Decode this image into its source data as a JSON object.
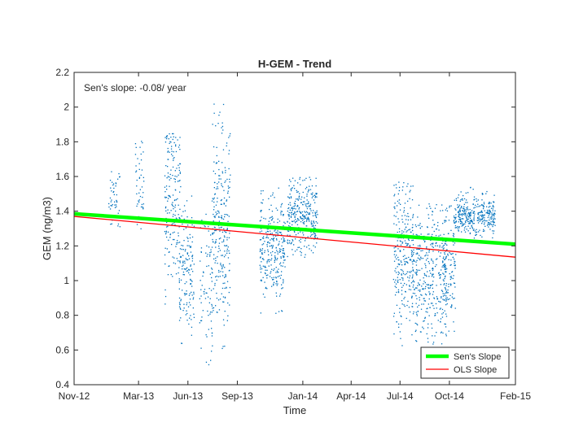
{
  "chart_data": {
    "type": "scatter",
    "title": "H-GEM - Trend",
    "xlabel": "Time",
    "ylabel": "GEM (ng/m3)",
    "ylim": [
      0.4,
      2.2
    ],
    "yticks": [
      0.4,
      0.6,
      0.8,
      1,
      1.2,
      1.4,
      1.6,
      1.8,
      2,
      2.2
    ],
    "yticklabels": [
      "0.4",
      "0.6",
      "0.8",
      "1",
      "1.2",
      "1.4",
      "1.6",
      "1.8",
      "2",
      "2.2"
    ],
    "xlim": [
      "2012-11-01",
      "2015-02-01"
    ],
    "xticks": [
      "2012-11-01",
      "2013-03-01",
      "2013-06-01",
      "2013-09-01",
      "2014-01-01",
      "2014-04-01",
      "2014-07-01",
      "2014-10-01",
      "2015-02-01"
    ],
    "xticklabels": [
      "Nov-12",
      "Mar-13",
      "Jun-13",
      "Sep-13",
      "Jan-14",
      "Apr-14",
      "Jul-14",
      "Oct-14",
      "Feb-15"
    ],
    "annotation": "Sen's slope: -0.08/ year",
    "grid": false,
    "legend_position": "bottom-right",
    "series": [
      {
        "name": "",
        "kind": "points",
        "color": "#0072BD",
        "clusters": [
          {
            "start": "2013-01-01",
            "end": "2013-01-25",
            "mean": 1.47,
            "spread": 0.09,
            "min": 1.2,
            "max": 1.66,
            "n": 45
          },
          {
            "start": "2013-02-22",
            "end": "2013-03-10",
            "mean": 1.57,
            "spread": 0.12,
            "min": 1.25,
            "max": 1.81,
            "n": 45
          },
          {
            "start": "2013-04-18",
            "end": "2013-05-18",
            "mean": 1.48,
            "spread": 0.25,
            "min": 0.8,
            "max": 1.85,
            "n": 180
          },
          {
            "start": "2013-05-15",
            "end": "2013-06-12",
            "mean": 1.05,
            "spread": 0.18,
            "min": 0.6,
            "max": 1.5,
            "n": 150
          },
          {
            "start": "2013-06-22",
            "end": "2013-07-16",
            "mean": 0.95,
            "spread": 0.2,
            "min": 0.46,
            "max": 1.4,
            "n": 80
          },
          {
            "start": "2013-07-15",
            "end": "2013-08-18",
            "mean": 1.3,
            "spread": 0.3,
            "min": 0.45,
            "max": 2.02,
            "n": 260
          },
          {
            "start": "2013-10-12",
            "end": "2013-11-28",
            "mean": 1.2,
            "spread": 0.15,
            "min": 0.8,
            "max": 1.55,
            "n": 280
          },
          {
            "start": "2013-12-02",
            "end": "2014-01-28",
            "mean": 1.38,
            "spread": 0.1,
            "min": 1.13,
            "max": 1.6,
            "n": 320
          },
          {
            "start": "2014-06-18",
            "end": "2014-07-25",
            "mean": 1.15,
            "spread": 0.22,
            "min": 0.42,
            "max": 1.57,
            "n": 260
          },
          {
            "start": "2014-07-22",
            "end": "2014-09-25",
            "mean": 1.05,
            "spread": 0.2,
            "min": 0.43,
            "max": 1.45,
            "n": 380
          },
          {
            "start": "2014-09-18",
            "end": "2014-10-12",
            "mean": 1.08,
            "spread": 0.16,
            "min": 0.7,
            "max": 1.45,
            "n": 120
          },
          {
            "start": "2014-10-08",
            "end": "2014-12-25",
            "mean": 1.38,
            "spread": 0.06,
            "min": 1.2,
            "max": 1.54,
            "n": 360
          }
        ]
      },
      {
        "name": "Sen's Slope",
        "kind": "line",
        "color": "#00FF00",
        "x": [
          "2012-11-01",
          "2015-02-01"
        ],
        "y": [
          1.385,
          1.21
        ]
      },
      {
        "name": "OLS Slope",
        "kind": "line",
        "color": "#FF0000",
        "x": [
          "2012-11-01",
          "2015-02-01"
        ],
        "y": [
          1.37,
          1.135
        ]
      }
    ]
  }
}
